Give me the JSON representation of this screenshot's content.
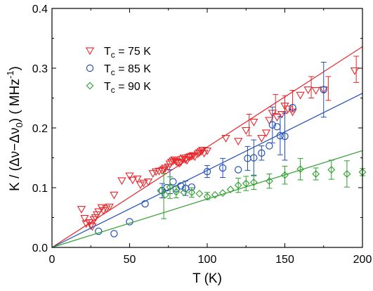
{
  "chart_data": {
    "type": "scatter",
    "xlabel": "T (K)",
    "ylabel_parts": {
      "prefix": "K / (",
      "delta1": "Δν",
      "minus": "−",
      "delta2": "Δν",
      "sub": "0",
      "mid": ") ( MHz",
      "sup": "-1",
      "suffix": ")"
    },
    "xlim": [
      0,
      200
    ],
    "ylim": [
      0.0,
      0.4
    ],
    "x_ticks": [
      "0",
      "50",
      "100",
      "150",
      "200"
    ],
    "y_ticks": [
      "0.0",
      "0.1",
      "0.2",
      "0.3",
      "0.4"
    ],
    "grid": false,
    "legend_position": "upper-left",
    "series": [
      {
        "name": "75 K",
        "legend": {
          "T": "T",
          "sub": "c",
          "rest": " = 75 K"
        },
        "color": "#e8262a",
        "marker": "triangle-down",
        "fit_slope": 0.00168,
        "points": [
          {
            "x": 19,
            "y": 0.064
          },
          {
            "x": 21,
            "y": 0.049
          },
          {
            "x": 22,
            "y": 0.04
          },
          {
            "x": 24,
            "y": 0.042
          },
          {
            "x": 25,
            "y": 0.037
          },
          {
            "x": 26,
            "y": 0.035
          },
          {
            "x": 27,
            "y": 0.047
          },
          {
            "x": 28,
            "y": 0.05
          },
          {
            "x": 29,
            "y": 0.055
          },
          {
            "x": 30,
            "y": 0.06
          },
          {
            "x": 32,
            "y": 0.067
          },
          {
            "x": 33,
            "y": 0.062
          },
          {
            "x": 35,
            "y": 0.065
          },
          {
            "x": 37,
            "y": 0.068
          },
          {
            "x": 40,
            "y": 0.088
          },
          {
            "x": 45,
            "y": 0.112
          },
          {
            "x": 50,
            "y": 0.12
          },
          {
            "x": 52,
            "y": 0.113
          },
          {
            "x": 55,
            "y": 0.115
          },
          {
            "x": 57,
            "y": 0.105
          },
          {
            "x": 59,
            "y": 0.108
          },
          {
            "x": 62,
            "y": 0.11
          },
          {
            "x": 65,
            "y": 0.124
          },
          {
            "x": 67,
            "y": 0.127
          },
          {
            "x": 69,
            "y": 0.128
          },
          {
            "x": 71,
            "y": 0.129
          },
          {
            "x": 72,
            "y": 0.131
          },
          {
            "x": 73,
            "y": 0.133
          },
          {
            "x": 75,
            "y": 0.135
          },
          {
            "x": 76,
            "y": 0.14
          },
          {
            "x": 77,
            "y": 0.143
          },
          {
            "x": 78,
            "y": 0.145
          },
          {
            "x": 79,
            "y": 0.147
          },
          {
            "x": 80,
            "y": 0.144
          },
          {
            "x": 81,
            "y": 0.142
          },
          {
            "x": 82,
            "y": 0.141
          },
          {
            "x": 83,
            "y": 0.143
          },
          {
            "x": 84,
            "y": 0.148
          },
          {
            "x": 85,
            "y": 0.15
          },
          {
            "x": 86,
            "y": 0.147
          },
          {
            "x": 87,
            "y": 0.146
          },
          {
            "x": 88,
            "y": 0.151
          },
          {
            "x": 89,
            "y": 0.152
          },
          {
            "x": 90,
            "y": 0.153
          },
          {
            "x": 91,
            "y": 0.154
          },
          {
            "x": 92,
            "y": 0.152
          },
          {
            "x": 94,
            "y": 0.157
          },
          {
            "x": 95,
            "y": 0.159
          },
          {
            "x": 96,
            "y": 0.161
          },
          {
            "x": 97,
            "y": 0.163
          },
          {
            "x": 98,
            "y": 0.158
          },
          {
            "x": 100,
            "y": 0.162
          },
          {
            "x": 112,
            "y": 0.183
          },
          {
            "x": 120,
            "y": 0.178
          },
          {
            "x": 125,
            "y": 0.196
          },
          {
            "x": 130,
            "y": 0.21
          },
          {
            "x": 135,
            "y": 0.183
          },
          {
            "x": 138,
            "y": 0.192
          },
          {
            "x": 140,
            "y": 0.213
          },
          {
            "x": 142,
            "y": 0.225
          },
          {
            "x": 145,
            "y": 0.218
          },
          {
            "x": 148,
            "y": 0.223
          },
          {
            "x": 150,
            "y": 0.237
          },
          {
            "x": 152,
            "y": 0.232
          },
          {
            "x": 155,
            "y": 0.227
          },
          {
            "x": 160,
            "y": 0.255
          },
          {
            "x": 165,
            "y": 0.264
          },
          {
            "x": 170,
            "y": 0.263
          },
          {
            "x": 175,
            "y": 0.264
          },
          {
            "x": 195,
            "y": 0.296
          }
        ],
        "errorbars": [
          {
            "x": 127,
            "y": 0.205,
            "err": 0.018
          },
          {
            "x": 144,
            "y": 0.24,
            "err": 0.016
          },
          {
            "x": 150,
            "y": 0.239,
            "err": 0.015
          },
          {
            "x": 155,
            "y": 0.245,
            "err": 0.018
          },
          {
            "x": 167,
            "y": 0.268,
            "err": 0.018
          },
          {
            "x": 178,
            "y": 0.266,
            "err": 0.02
          },
          {
            "x": 196,
            "y": 0.298,
            "err": 0.022
          }
        ]
      },
      {
        "name": "85 K",
        "legend": {
          "T": "T",
          "sub": "c",
          "rest": " = 85 K"
        },
        "color": "#2150b8",
        "marker": "circle",
        "fit_slope": 0.00129,
        "points": [
          {
            "x": 30,
            "y": 0.027
          },
          {
            "x": 40,
            "y": 0.023
          },
          {
            "x": 50,
            "y": 0.043
          },
          {
            "x": 60,
            "y": 0.073
          },
          {
            "x": 71,
            "y": 0.095
          },
          {
            "x": 74,
            "y": 0.1
          },
          {
            "x": 78,
            "y": 0.11
          },
          {
            "x": 80,
            "y": 0.098
          },
          {
            "x": 83,
            "y": 0.103
          },
          {
            "x": 86,
            "y": 0.099
          },
          {
            "x": 90,
            "y": 0.101
          },
          {
            "x": 100,
            "y": 0.127
          },
          {
            "x": 110,
            "y": 0.133
          },
          {
            "x": 120,
            "y": 0.13
          },
          {
            "x": 126,
            "y": 0.149
          },
          {
            "x": 130,
            "y": 0.15
          },
          {
            "x": 135,
            "y": 0.158
          },
          {
            "x": 140,
            "y": 0.17
          },
          {
            "x": 142,
            "y": 0.205
          },
          {
            "x": 145,
            "y": 0.202
          },
          {
            "x": 147,
            "y": 0.187
          },
          {
            "x": 150,
            "y": 0.186
          },
          {
            "x": 155,
            "y": 0.234
          },
          {
            "x": 175,
            "y": 0.264
          }
        ],
        "errorbars": [
          {
            "x": 71,
            "y": 0.095,
            "err": 0.012
          },
          {
            "x": 76,
            "y": 0.11,
            "err": 0.02
          },
          {
            "x": 86,
            "y": 0.099,
            "err": 0.012
          },
          {
            "x": 100,
            "y": 0.127,
            "err": 0.01
          },
          {
            "x": 110,
            "y": 0.133,
            "err": 0.016
          },
          {
            "x": 126,
            "y": 0.149,
            "err": 0.02
          },
          {
            "x": 130,
            "y": 0.15,
            "err": 0.03
          },
          {
            "x": 135,
            "y": 0.158,
            "err": 0.012
          },
          {
            "x": 142,
            "y": 0.205,
            "err": 0.03
          },
          {
            "x": 147,
            "y": 0.187,
            "err": 0.032
          },
          {
            "x": 150,
            "y": 0.186,
            "err": 0.04
          },
          {
            "x": 175,
            "y": 0.264,
            "err": 0.046
          }
        ]
      },
      {
        "name": "90 K",
        "legend": {
          "T": "T",
          "sub": "c",
          "rest": " = 90 K"
        },
        "color": "#2ca02c",
        "marker": "diamond",
        "fit_slope": 0.00081,
        "points": [
          {
            "x": 70,
            "y": 0.095
          },
          {
            "x": 73,
            "y": 0.088
          },
          {
            "x": 76,
            "y": 0.101
          },
          {
            "x": 80,
            "y": 0.093
          },
          {
            "x": 85,
            "y": 0.092
          },
          {
            "x": 90,
            "y": 0.092
          },
          {
            "x": 95,
            "y": 0.09
          },
          {
            "x": 100,
            "y": 0.085
          },
          {
            "x": 105,
            "y": 0.088
          },
          {
            "x": 110,
            "y": 0.091
          },
          {
            "x": 115,
            "y": 0.097
          },
          {
            "x": 120,
            "y": 0.104
          },
          {
            "x": 125,
            "y": 0.107
          },
          {
            "x": 130,
            "y": 0.109
          },
          {
            "x": 140,
            "y": 0.111
          },
          {
            "x": 150,
            "y": 0.121
          },
          {
            "x": 160,
            "y": 0.131
          },
          {
            "x": 170,
            "y": 0.123
          },
          {
            "x": 180,
            "y": 0.13
          },
          {
            "x": 190,
            "y": 0.123
          },
          {
            "x": 200,
            "y": 0.126
          }
        ],
        "errorbars": [
          {
            "x": 72,
            "y": 0.086,
            "err": 0.038
          },
          {
            "x": 76,
            "y": 0.1,
            "err": 0.018
          },
          {
            "x": 80,
            "y": 0.093,
            "err": 0.01
          },
          {
            "x": 90,
            "y": 0.092,
            "err": 0.008
          },
          {
            "x": 100,
            "y": 0.086,
            "err": 0.006
          },
          {
            "x": 120,
            "y": 0.104,
            "err": 0.012
          },
          {
            "x": 125,
            "y": 0.107,
            "err": 0.012
          },
          {
            "x": 130,
            "y": 0.109,
            "err": 0.012
          },
          {
            "x": 140,
            "y": 0.111,
            "err": 0.012
          },
          {
            "x": 150,
            "y": 0.121,
            "err": 0.015
          },
          {
            "x": 160,
            "y": 0.131,
            "err": 0.018
          },
          {
            "x": 170,
            "y": 0.123,
            "err": 0.01
          },
          {
            "x": 180,
            "y": 0.13,
            "err": 0.016
          },
          {
            "x": 190,
            "y": 0.123,
            "err": 0.022
          },
          {
            "x": 200,
            "y": 0.126,
            "err": 0.006
          }
        ]
      }
    ]
  }
}
